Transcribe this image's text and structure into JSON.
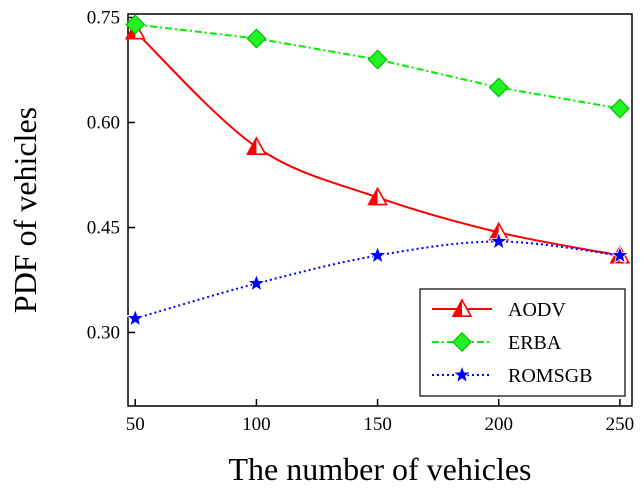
{
  "chart_data": {
    "type": "line",
    "xlabel": "The number of vehicles",
    "ylabel": "PDF of vehicles",
    "x": [
      50,
      100,
      150,
      200,
      250
    ],
    "xticks": [
      "50",
      "100",
      "150",
      "200",
      "250"
    ],
    "yticks": [
      "0.30",
      "0.45",
      "0.60",
      "0.75"
    ],
    "xlim": [
      47,
      255
    ],
    "ylim": [
      0.195,
      0.755
    ],
    "legend_position": "bottom-right",
    "grid": false,
    "series": [
      {
        "name": "AODV",
        "values": [
          0.73,
          0.565,
          0.493,
          0.443,
          0.41
        ],
        "color": "#ff0000",
        "marker": "triangle",
        "line": "solid",
        "fit": "smooth"
      },
      {
        "name": "ERBA",
        "values": [
          0.74,
          0.72,
          0.69,
          0.65,
          0.62
        ],
        "color": "#00ee00",
        "marker": "diamond",
        "line": "dash-dot",
        "fit": "linear"
      },
      {
        "name": "ROMSGB",
        "values": [
          0.32,
          0.37,
          0.41,
          0.43,
          0.41
        ],
        "color": "#0000ff",
        "marker": "star",
        "line": "dotted",
        "fit": "smooth"
      }
    ]
  }
}
